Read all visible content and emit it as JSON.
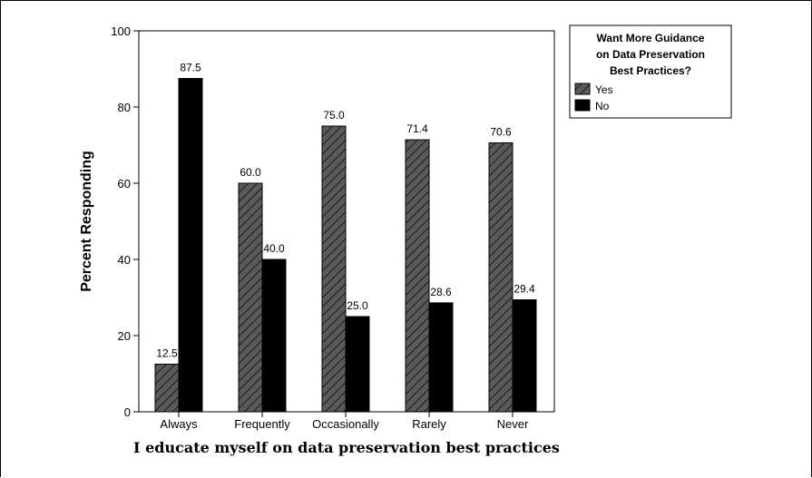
{
  "chart_data": {
    "type": "bar",
    "title": "",
    "xlabel": "I educate myself on data preservation best practices",
    "ylabel": "Percent Responding",
    "ylim": [
      0,
      100
    ],
    "yticks": [
      0,
      20,
      40,
      60,
      80,
      100
    ],
    "categories": [
      "Always",
      "Frequently",
      "Occasionally",
      "Rarely",
      "Never"
    ],
    "series": [
      {
        "name": "Yes",
        "values": [
          12.5,
          60.0,
          75.0,
          71.4,
          70.6
        ],
        "color": "#555555",
        "pattern": "diagonal-hatch"
      },
      {
        "name": "No",
        "values": [
          87.5,
          40.0,
          25.0,
          28.6,
          29.4
        ],
        "color": "#000000",
        "pattern": "solid"
      }
    ],
    "data_labels": true,
    "grid": false,
    "legend": {
      "title_lines": [
        "Want More Guidance",
        "on Data Preservation",
        "Best Practices?"
      ],
      "placement": "right-top"
    }
  }
}
